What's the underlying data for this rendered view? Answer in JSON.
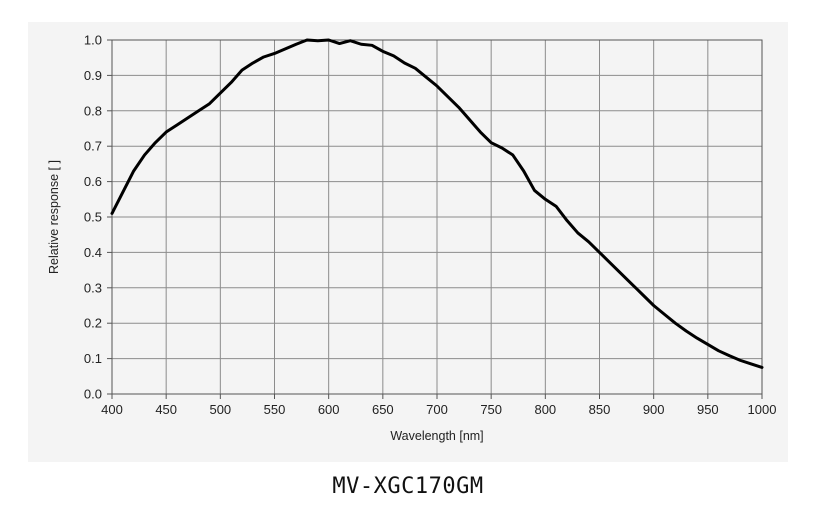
{
  "caption": "MV-XGC170GM",
  "chart_data": {
    "type": "line",
    "title": "",
    "xlabel": "Wavelength [nm]",
    "ylabel": "Relative response [ ]",
    "xlim": [
      400,
      1000
    ],
    "ylim": [
      0.0,
      1.0
    ],
    "xticks": [
      "400",
      "450",
      "500",
      "550",
      "600",
      "650",
      "700",
      "750",
      "800",
      "850",
      "900",
      "950",
      "1000"
    ],
    "yticks": [
      "0.0",
      "0.1",
      "0.2",
      "0.3",
      "0.4",
      "0.5",
      "0.6",
      "0.7",
      "0.8",
      "0.9",
      "1.0"
    ],
    "grid": true,
    "line_color": "#000000",
    "series": [
      {
        "x": [
          400,
          410,
          420,
          430,
          440,
          450,
          460,
          470,
          480,
          490,
          500,
          510,
          520,
          530,
          540,
          550,
          560,
          570,
          580,
          590,
          600,
          610,
          620,
          630,
          640,
          650,
          660,
          670,
          680,
          690,
          700,
          710,
          720,
          730,
          740,
          750,
          760,
          770,
          780,
          790,
          800,
          810,
          820,
          830,
          840,
          850,
          860,
          870,
          880,
          890,
          900,
          910,
          920,
          930,
          940,
          950,
          960,
          970,
          980,
          990,
          1000
        ],
        "values": [
          0.51,
          0.57,
          0.63,
          0.675,
          0.71,
          0.74,
          0.76,
          0.78,
          0.8,
          0.82,
          0.85,
          0.88,
          0.915,
          0.935,
          0.952,
          0.962,
          0.975,
          0.988,
          1.0,
          0.998,
          1.0,
          0.99,
          0.998,
          0.988,
          0.985,
          0.968,
          0.955,
          0.935,
          0.92,
          0.895,
          0.87,
          0.84,
          0.81,
          0.775,
          0.74,
          0.71,
          0.695,
          0.675,
          0.63,
          0.575,
          0.55,
          0.53,
          0.49,
          0.455,
          0.43,
          0.4,
          0.37,
          0.34,
          0.31,
          0.28,
          0.25,
          0.225,
          0.2,
          0.178,
          0.158,
          0.14,
          0.122,
          0.108,
          0.095,
          0.085,
          0.075
        ]
      }
    ]
  }
}
